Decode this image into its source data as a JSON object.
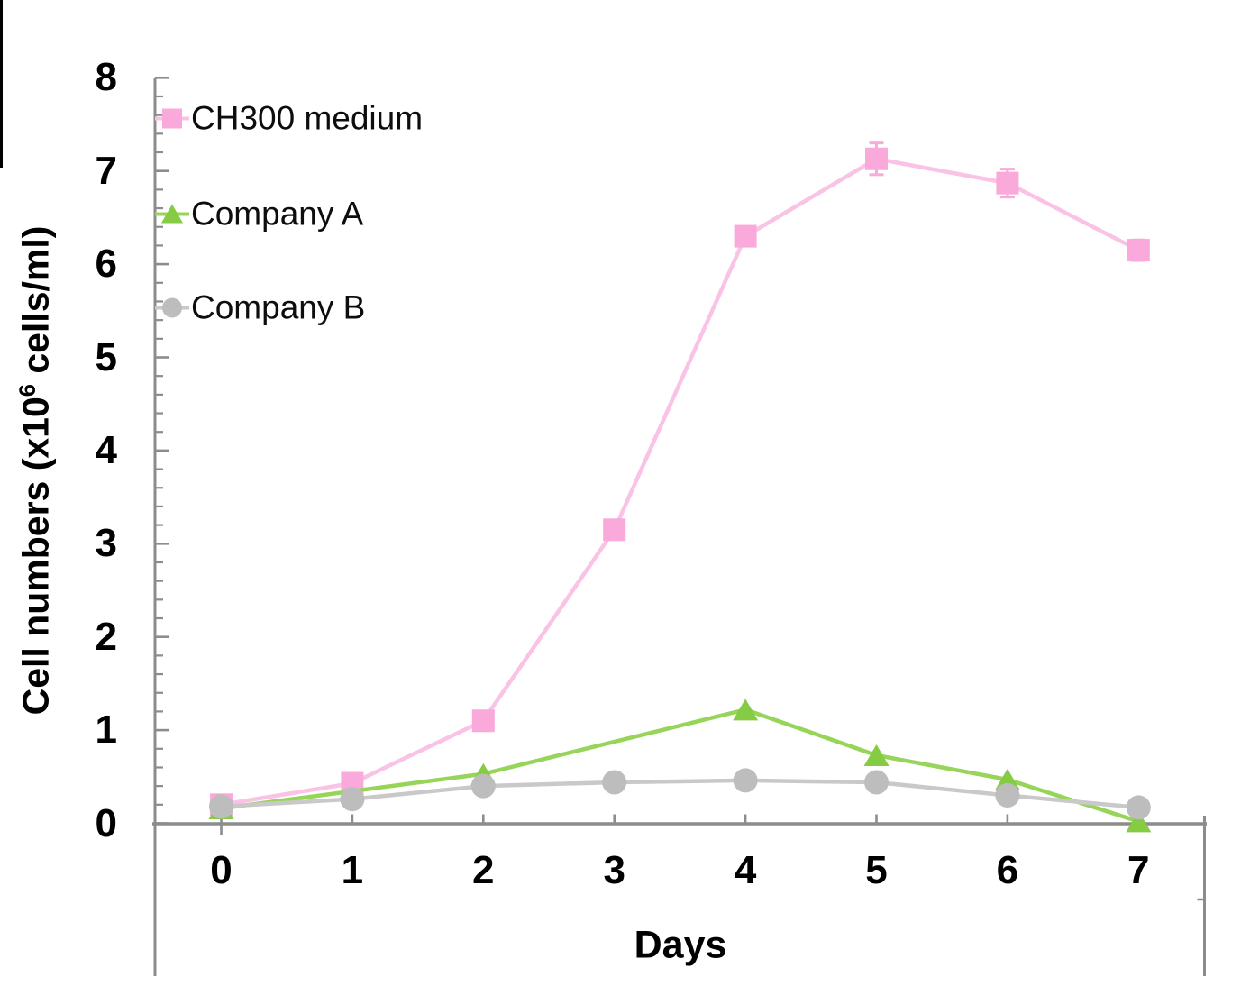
{
  "figure": {
    "x_axis_title": "Days",
    "y_axis_title": {
      "prefix": "Cell numbers (x10",
      "sup": "6",
      "suffix": " cells/ml)"
    }
  },
  "chart_data": {
    "type": "line",
    "title": "",
    "xlabel": "Days",
    "ylabel": "Cell numbers (x10^6 cells/ml)",
    "xlim": [
      -0.5,
      7.5
    ],
    "ylim": [
      0,
      8
    ],
    "x_ticks": [
      "0",
      "1",
      "2",
      "3",
      "4",
      "5",
      "6",
      "7"
    ],
    "y_ticks": [
      "0",
      "1",
      "2",
      "3",
      "4",
      "5",
      "6",
      "7",
      "8"
    ],
    "y_minor_tick_step": 0.2,
    "grid": false,
    "legend_position": "inside-top-left",
    "axis_color": "#8C8C8C",
    "series": [
      {
        "name": "CH300 medium",
        "marker": "square",
        "marker_color": "#F9A9DA",
        "line_color": "#FAC3E6",
        "x": [
          0,
          1,
          2,
          3,
          4,
          5,
          6,
          7
        ],
        "values": [
          0.2,
          0.43,
          1.1,
          3.15,
          6.3,
          7.13,
          6.87,
          6.15
        ],
        "y_err": [
          0,
          0,
          0,
          0,
          0,
          0.17,
          0.15,
          0.11
        ]
      },
      {
        "name": "Company A",
        "marker": "triangle",
        "marker_color": "#85CB43",
        "line_color": "#97D45A",
        "x": [
          0,
          2,
          4,
          5,
          6,
          7
        ],
        "values": [
          0.16,
          0.53,
          1.22,
          0.73,
          0.47,
          0.02
        ],
        "y_err": [
          0,
          0,
          0,
          0,
          0,
          0
        ]
      },
      {
        "name": "Company B",
        "marker": "circle",
        "marker_color": "#BDBDBD",
        "line_color": "#C9C9C9",
        "x": [
          0,
          1,
          2,
          3,
          4,
          5,
          6,
          7
        ],
        "values": [
          0.18,
          0.26,
          0.4,
          0.44,
          0.46,
          0.44,
          0.3,
          0.17
        ],
        "y_err": [
          0,
          0,
          0,
          0,
          0,
          0,
          0,
          0
        ]
      }
    ]
  }
}
